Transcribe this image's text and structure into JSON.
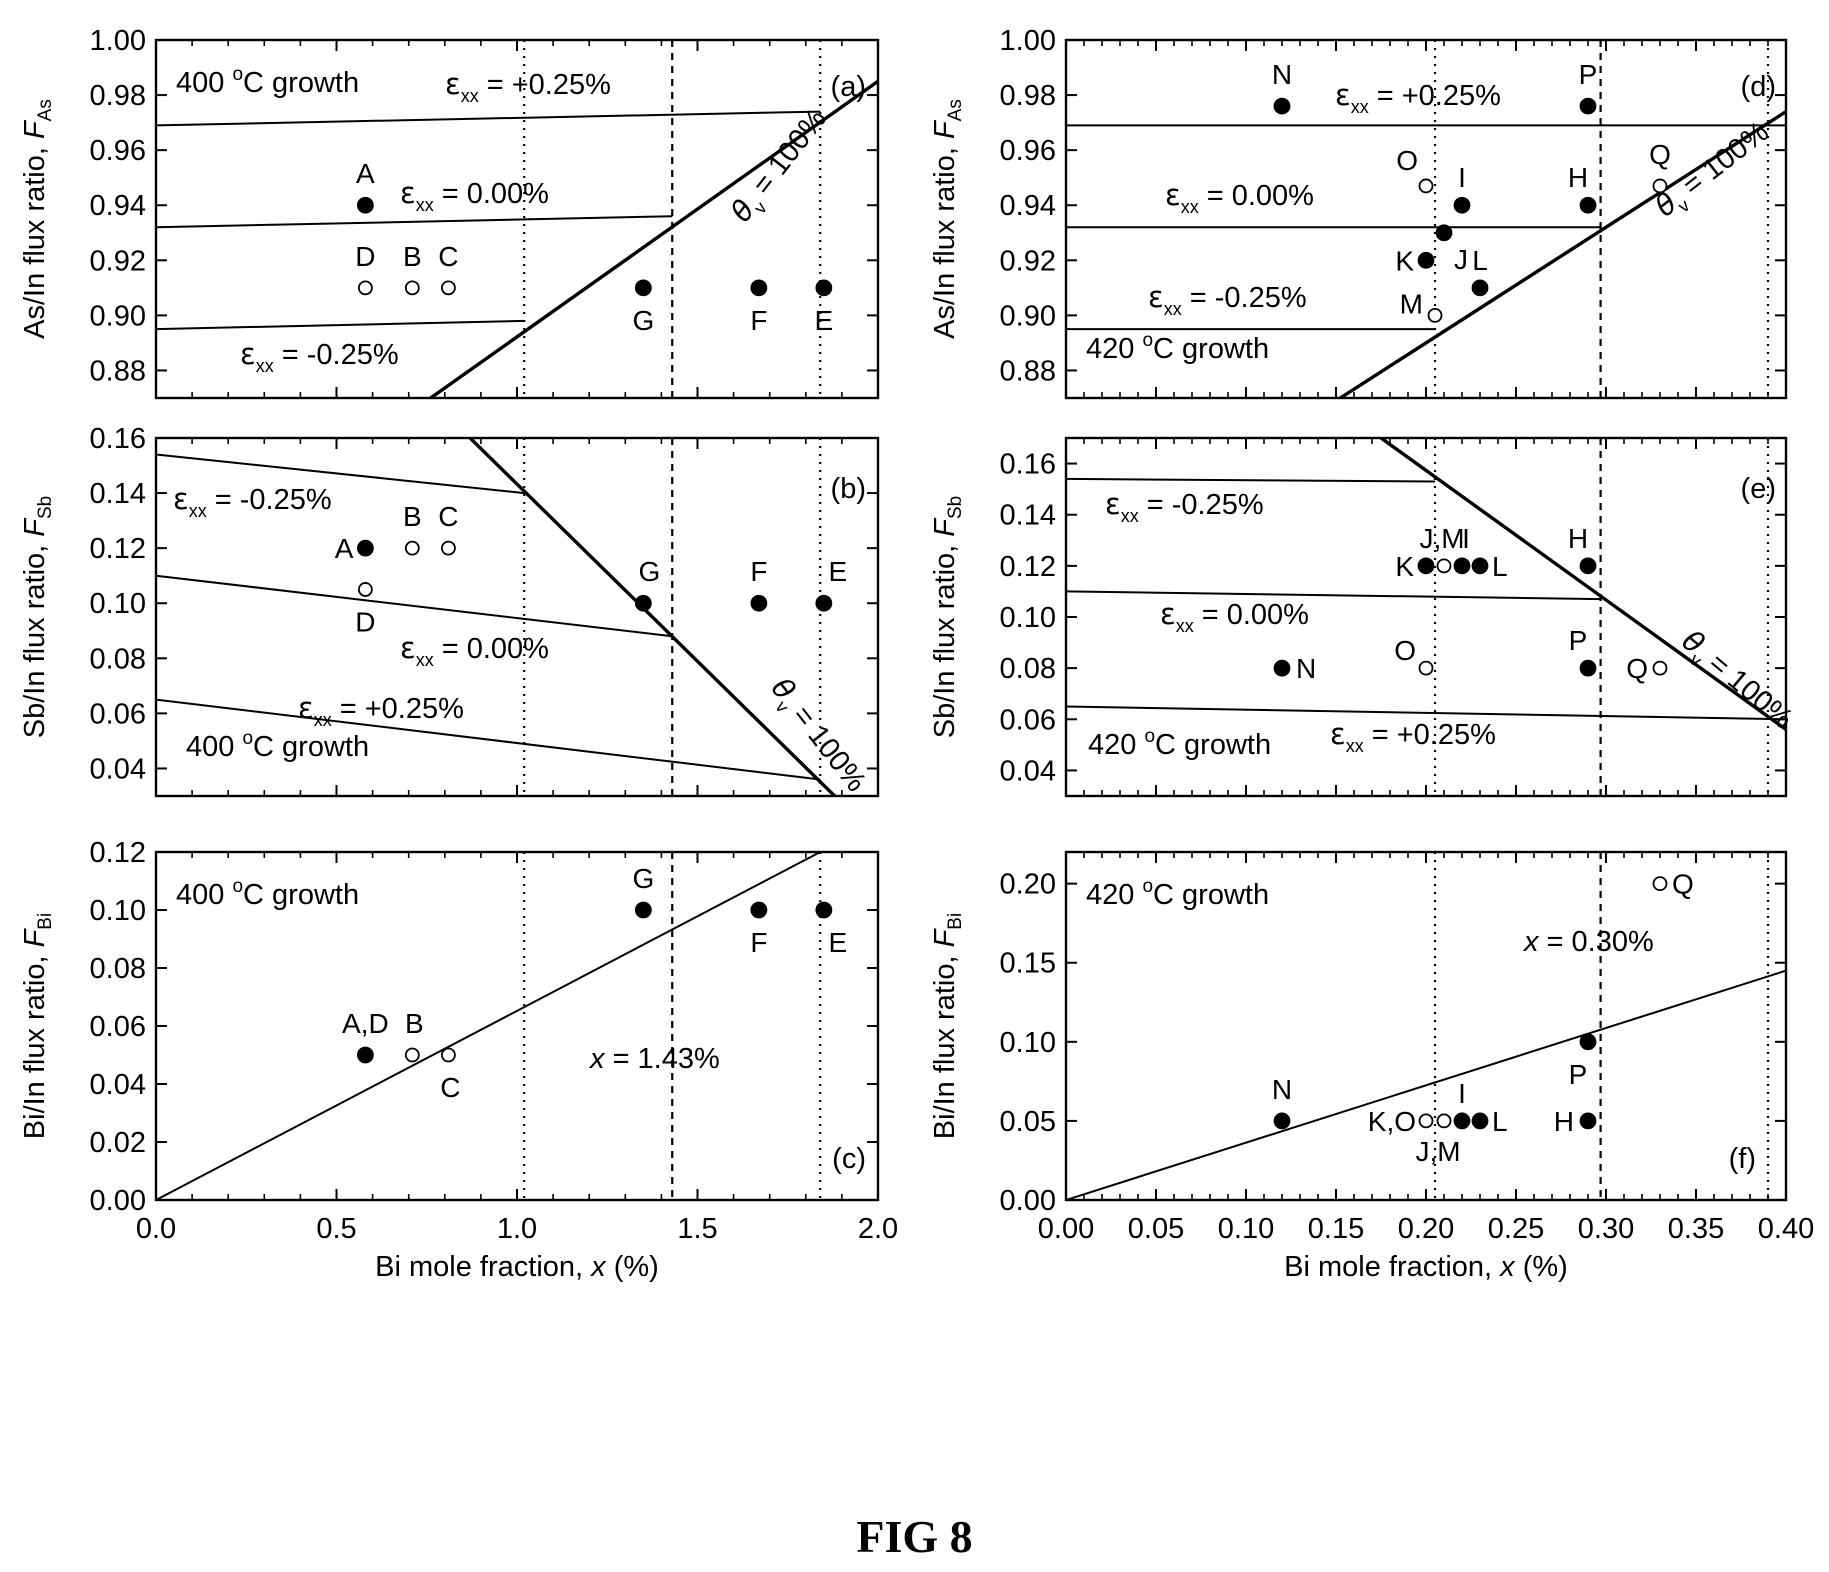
{
  "figure_caption": "FIG 8",
  "chart_data": [
    {
      "id": "a",
      "type": "scatter",
      "panel_label": "(a)",
      "xlim": [
        0.0,
        2.0
      ],
      "ylim": [
        0.87,
        1.0
      ],
      "xticks": [
        "0.0",
        "0.5",
        "1.0",
        "1.5",
        "2.0"
      ],
      "yticks": [
        "0.88",
        "0.90",
        "0.92",
        "0.94",
        "0.96",
        "0.98",
        "1.00"
      ],
      "ylabel_main": "As/In flux ratio, ",
      "ylabel_sym": "F",
      "ylabel_sub": "As",
      "show_xtick_labels": false,
      "growth_label": "400 °C growth",
      "vlines": [
        {
          "x": 1.02,
          "style": "dotted"
        },
        {
          "x": 1.43,
          "style": "dashed"
        },
        {
          "x": 1.84,
          "style": "dotted"
        }
      ],
      "lines": [
        {
          "name": "εxx = +0.25%",
          "x": [
            0.0,
            1.84
          ],
          "y": [
            0.969,
            0.974
          ]
        },
        {
          "name": "εxx = 0.00%",
          "x": [
            0.0,
            1.43
          ],
          "y": [
            0.932,
            0.936
          ]
        },
        {
          "name": "εxx = -0.25%",
          "x": [
            0.0,
            1.02
          ],
          "y": [
            0.895,
            0.898
          ]
        },
        {
          "name": "θv = 100%",
          "x": [
            0.75,
            2.0
          ],
          "y": [
            0.869,
            0.985
          ],
          "thick": true
        }
      ],
      "points": [
        {
          "label": "A",
          "x": 0.58,
          "y": 0.94,
          "filled": true
        },
        {
          "label": "D",
          "x": 0.58,
          "y": 0.91,
          "filled": false
        },
        {
          "label": "B",
          "x": 0.71,
          "y": 0.91,
          "filled": false
        },
        {
          "label": "C",
          "x": 0.81,
          "y": 0.91,
          "filled": false
        },
        {
          "label": "G",
          "x": 1.35,
          "y": 0.91,
          "filled": true
        },
        {
          "label": "F",
          "x": 1.67,
          "y": 0.91,
          "filled": true
        },
        {
          "label": "E",
          "x": 1.85,
          "y": 0.91,
          "filled": true
        }
      ]
    },
    {
      "id": "b",
      "type": "scatter",
      "panel_label": "(b)",
      "xlim": [
        0.0,
        2.0
      ],
      "ylim": [
        0.03,
        0.16
      ],
      "xticks": [
        "0.0",
        "0.5",
        "1.0",
        "1.5",
        "2.0"
      ],
      "yticks": [
        "0.04",
        "0.06",
        "0.08",
        "0.10",
        "0.12",
        "0.14",
        "0.16"
      ],
      "ylabel_main": "Sb/In flux ratio, ",
      "ylabel_sym": "F",
      "ylabel_sub": "Sb",
      "show_xtick_labels": false,
      "growth_label": "400 °C growth",
      "vlines": [
        {
          "x": 1.02,
          "style": "dotted"
        },
        {
          "x": 1.43,
          "style": "dashed"
        },
        {
          "x": 1.84,
          "style": "dotted"
        }
      ],
      "lines": [
        {
          "name": "εxx = -0.25%",
          "x": [
            0.0,
            1.02
          ],
          "y": [
            0.154,
            0.14
          ]
        },
        {
          "name": "εxx = 0.00%",
          "x": [
            0.0,
            1.43
          ],
          "y": [
            0.11,
            0.088
          ]
        },
        {
          "name": "εxx = +0.25%",
          "x": [
            0.0,
            1.84
          ],
          "y": [
            0.065,
            0.036
          ]
        },
        {
          "name": "θv = 100%",
          "x": [
            0.87,
            1.88
          ],
          "y": [
            0.16,
            0.03
          ],
          "thick": true
        }
      ],
      "points": [
        {
          "label": "A",
          "x": 0.58,
          "y": 0.12,
          "filled": true
        },
        {
          "label": "B",
          "x": 0.71,
          "y": 0.12,
          "filled": false
        },
        {
          "label": "C",
          "x": 0.81,
          "y": 0.12,
          "filled": false
        },
        {
          "label": "D",
          "x": 0.58,
          "y": 0.105,
          "filled": false
        },
        {
          "label": "G",
          "x": 1.35,
          "y": 0.1,
          "filled": true
        },
        {
          "label": "F",
          "x": 1.67,
          "y": 0.1,
          "filled": true
        },
        {
          "label": "E",
          "x": 1.85,
          "y": 0.1,
          "filled": true
        }
      ]
    },
    {
      "id": "c",
      "type": "scatter",
      "panel_label": "(c)",
      "xlim": [
        0.0,
        2.0
      ],
      "ylim": [
        0.0,
        0.12
      ],
      "xticks": [
        "0.0",
        "0.5",
        "1.0",
        "1.5",
        "2.0"
      ],
      "yticks": [
        "0.00",
        "0.02",
        "0.04",
        "0.06",
        "0.08",
        "0.10",
        "0.12"
      ],
      "ylabel_main": "Bi/In flux ratio, ",
      "ylabel_sym": "F",
      "ylabel_sub": "Bi",
      "show_xtick_labels": true,
      "xlabel_main": "Bi mole fraction, ",
      "xlabel_sym": "x",
      "xlabel_tail": " (%)",
      "growth_label": "400 °C growth",
      "annotation": "= 1.43%",
      "annotation_sym": "x",
      "vlines": [
        {
          "x": 1.02,
          "style": "dotted"
        },
        {
          "x": 1.43,
          "style": "dashed"
        },
        {
          "x": 1.84,
          "style": "dotted"
        }
      ],
      "lines": [
        {
          "name": "fit",
          "x": [
            0.0,
            1.84
          ],
          "y": [
            0.0,
            0.12
          ]
        }
      ],
      "points": [
        {
          "label": "A,D",
          "x": 0.58,
          "y": 0.05,
          "filled": true
        },
        {
          "label": "B",
          "x": 0.71,
          "y": 0.05,
          "filled": false
        },
        {
          "label": "C",
          "x": 0.81,
          "y": 0.05,
          "filled": false
        },
        {
          "label": "G",
          "x": 1.35,
          "y": 0.1,
          "filled": true
        },
        {
          "label": "F",
          "x": 1.67,
          "y": 0.1,
          "filled": true
        },
        {
          "label": "E",
          "x": 1.85,
          "y": 0.1,
          "filled": true
        }
      ]
    },
    {
      "id": "d",
      "type": "scatter",
      "panel_label": "(d)",
      "xlim": [
        0.0,
        0.4
      ],
      "ylim": [
        0.87,
        1.0
      ],
      "xticks": [
        "0.00",
        "0.05",
        "0.10",
        "0.15",
        "0.20",
        "0.25",
        "0.30",
        "0.35",
        "0.40"
      ],
      "yticks": [
        "0.88",
        "0.90",
        "0.92",
        "0.94",
        "0.96",
        "0.98",
        "1.00"
      ],
      "ylabel_main": "As/In flux ratio, ",
      "ylabel_sym": "F",
      "ylabel_sub": "As",
      "show_xtick_labels": false,
      "growth_label": "420 °C growth",
      "vlines": [
        {
          "x": 0.205,
          "style": "dotted"
        },
        {
          "x": 0.297,
          "style": "dashed"
        },
        {
          "x": 0.39,
          "style": "dotted"
        }
      ],
      "lines": [
        {
          "name": "εxx = +0.25%",
          "x": [
            0.0,
            0.4
          ],
          "y": [
            0.969,
            0.969
          ]
        },
        {
          "name": "εxx = 0.00%",
          "x": [
            0.0,
            0.297
          ],
          "y": [
            0.932,
            0.932
          ]
        },
        {
          "name": "εxx = -0.25%",
          "x": [
            0.0,
            0.205
          ],
          "y": [
            0.895,
            0.895
          ]
        },
        {
          "name": "θv = 100%",
          "x": [
            0.15,
            0.4
          ],
          "y": [
            0.869,
            0.974
          ],
          "thick": true
        }
      ],
      "points": [
        {
          "label": "N",
          "x": 0.12,
          "y": 0.976,
          "filled": true
        },
        {
          "label": "P",
          "x": 0.29,
          "y": 0.976,
          "filled": true
        },
        {
          "label": "O",
          "x": 0.2,
          "y": 0.947,
          "filled": false
        },
        {
          "label": "I",
          "x": 0.22,
          "y": 0.94,
          "filled": true
        },
        {
          "label": "H",
          "x": 0.29,
          "y": 0.94,
          "filled": true
        },
        {
          "label": "Q",
          "x": 0.33,
          "y": 0.947,
          "filled": false
        },
        {
          "label": "J",
          "x": 0.21,
          "y": 0.93,
          "filled": true
        },
        {
          "label": "K",
          "x": 0.2,
          "y": 0.92,
          "filled": true
        },
        {
          "label": "L",
          "x": 0.23,
          "y": 0.91,
          "filled": true
        },
        {
          "label": "M",
          "x": 0.205,
          "y": 0.9,
          "filled": false
        }
      ]
    },
    {
      "id": "e",
      "type": "scatter",
      "panel_label": "(e)",
      "xlim": [
        0.0,
        0.4
      ],
      "ylim": [
        0.03,
        0.17
      ],
      "xticks": [
        "0.00",
        "0.05",
        "0.10",
        "0.15",
        "0.20",
        "0.25",
        "0.30",
        "0.35",
        "0.40"
      ],
      "yticks": [
        "0.04",
        "0.06",
        "0.08",
        "0.10",
        "0.12",
        "0.14",
        "0.16"
      ],
      "ylabel_main": "Sb/In flux ratio, ",
      "ylabel_sym": "F",
      "ylabel_sub": "Sb",
      "show_xtick_labels": false,
      "growth_label": "420 °C growth",
      "vlines": [
        {
          "x": 0.205,
          "style": "dotted"
        },
        {
          "x": 0.297,
          "style": "dashed"
        },
        {
          "x": 0.39,
          "style": "dotted"
        }
      ],
      "lines": [
        {
          "name": "εxx = -0.25%",
          "x": [
            0.0,
            0.205
          ],
          "y": [
            0.154,
            0.153
          ]
        },
        {
          "name": "εxx = 0.00%",
          "x": [
            0.0,
            0.297
          ],
          "y": [
            0.11,
            0.107
          ]
        },
        {
          "name": "εxx = +0.25%",
          "x": [
            0.0,
            0.4
          ],
          "y": [
            0.065,
            0.06
          ]
        },
        {
          "name": "θv = 100%",
          "x": [
            0.175,
            0.4
          ],
          "y": [
            0.17,
            0.056
          ],
          "thick": true
        }
      ],
      "points": [
        {
          "label": "K",
          "x": 0.2,
          "y": 0.12,
          "filled": true
        },
        {
          "label": "J,M",
          "x": 0.21,
          "y": 0.12,
          "filled": false
        },
        {
          "label": "I",
          "x": 0.22,
          "y": 0.12,
          "filled": true
        },
        {
          "label": "L",
          "x": 0.23,
          "y": 0.12,
          "filled": true
        },
        {
          "label": "H",
          "x": 0.29,
          "y": 0.12,
          "filled": true
        },
        {
          "label": "N",
          "x": 0.12,
          "y": 0.08,
          "filled": true
        },
        {
          "label": "O",
          "x": 0.2,
          "y": 0.08,
          "filled": false
        },
        {
          "label": "P",
          "x": 0.29,
          "y": 0.08,
          "filled": true
        },
        {
          "label": "Q",
          "x": 0.33,
          "y": 0.08,
          "filled": false
        }
      ]
    },
    {
      "id": "f",
      "type": "scatter",
      "panel_label": "(f)",
      "xlim": [
        0.0,
        0.4
      ],
      "ylim": [
        0.0,
        0.22
      ],
      "xticks": [
        "0.00",
        "0.05",
        "0.10",
        "0.15",
        "0.20",
        "0.25",
        "0.30",
        "0.35",
        "0.40"
      ],
      "yticks": [
        "0.00",
        "0.05",
        "0.10",
        "0.15",
        "0.20"
      ],
      "ylabel_main": "Bi/In flux ratio, ",
      "ylabel_sym": "F",
      "ylabel_sub": "Bi",
      "show_xtick_labels": true,
      "xlabel_main": "Bi mole fraction, ",
      "xlabel_sym": "x",
      "xlabel_tail": " (%)",
      "growth_label": "420 °C growth",
      "annotation": "= 0.30%",
      "annotation_sym": "x",
      "vlines": [
        {
          "x": 0.205,
          "style": "dotted"
        },
        {
          "x": 0.297,
          "style": "dashed"
        },
        {
          "x": 0.39,
          "style": "dotted"
        }
      ],
      "lines": [
        {
          "name": "fit",
          "x": [
            0.0,
            0.4
          ],
          "y": [
            0.0,
            0.145
          ]
        }
      ],
      "points": [
        {
          "label": "N",
          "x": 0.12,
          "y": 0.05,
          "filled": true
        },
        {
          "label": "K,O",
          "x": 0.2,
          "y": 0.05,
          "filled": false
        },
        {
          "label": "J,M",
          "x": 0.21,
          "y": 0.05,
          "filled": false
        },
        {
          "label": "I",
          "x": 0.22,
          "y": 0.05,
          "filled": true
        },
        {
          "label": "L",
          "x": 0.23,
          "y": 0.05,
          "filled": true
        },
        {
          "label": "P",
          "x": 0.29,
          "y": 0.1,
          "filled": true
        },
        {
          "label": "H",
          "x": 0.29,
          "y": 0.05,
          "filled": true
        },
        {
          "label": "Q",
          "x": 0.33,
          "y": 0.2,
          "filled": false
        }
      ]
    }
  ]
}
